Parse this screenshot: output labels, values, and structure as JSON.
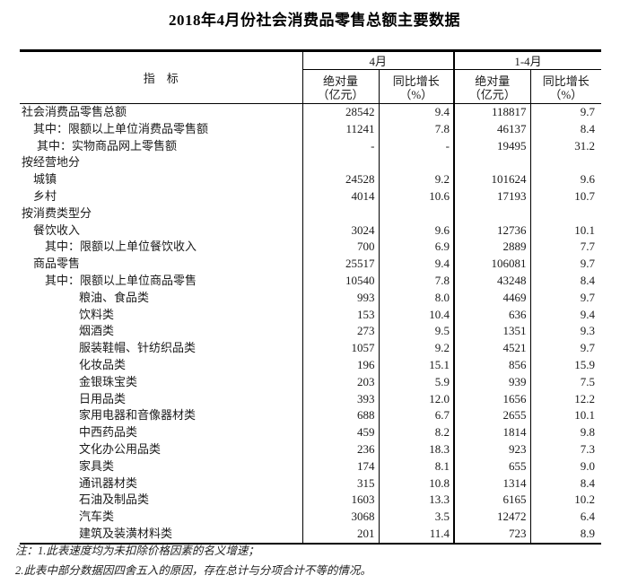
{
  "title": "2018年4月份社会消费品零售总额主要数据",
  "table": {
    "header": {
      "indicator": "指　标",
      "groups": [
        {
          "label": "4月"
        },
        {
          "label": "1-4月"
        }
      ],
      "cols": [
        {
          "line1": "绝对量",
          "line2": "（亿元）"
        },
        {
          "line1": "同比增长",
          "line2": "（%）"
        },
        {
          "line1": "绝对量",
          "line2": "（亿元）"
        },
        {
          "line1": "同比增长",
          "line2": "（%）"
        }
      ]
    },
    "rows": [
      {
        "label": "社会消费品零售总额",
        "level": 0,
        "values": [
          "28542",
          "9.4",
          "118817",
          "9.7"
        ]
      },
      {
        "label": "其中：限额以上单位消费品零售额",
        "level": 1,
        "values": [
          "11241",
          "7.8",
          "46137",
          "8.4"
        ]
      },
      {
        "label": "其中：实物商品网上零售额",
        "level": 1.2,
        "values": [
          "-",
          "-",
          "19495",
          "31.2"
        ]
      },
      {
        "label": "按经营地分",
        "level": 0,
        "values": [
          "",
          "",
          "",
          ""
        ]
      },
      {
        "label": "城镇",
        "level": 1,
        "values": [
          "24528",
          "9.2",
          "101624",
          "9.6"
        ]
      },
      {
        "label": "乡村",
        "level": 1,
        "values": [
          "4014",
          "10.6",
          "17193",
          "10.7"
        ]
      },
      {
        "label": "按消费类型分",
        "level": 0,
        "values": [
          "",
          "",
          "",
          ""
        ]
      },
      {
        "label": "餐饮收入",
        "level": 1,
        "values": [
          "3024",
          "9.6",
          "12736",
          "10.1"
        ]
      },
      {
        "label": "其中：限额以上单位餐饮收入",
        "level": 2,
        "values": [
          "700",
          "6.9",
          "2889",
          "7.7"
        ]
      },
      {
        "label": "商品零售",
        "level": 1,
        "values": [
          "25517",
          "9.4",
          "106081",
          "9.7"
        ]
      },
      {
        "label": "其中：限额以上单位商品零售",
        "level": 2,
        "values": [
          "10540",
          "7.8",
          "43248",
          "8.4"
        ]
      },
      {
        "label": "粮油、食品类",
        "level": 3,
        "values": [
          "993",
          "8.0",
          "4469",
          "9.7"
        ]
      },
      {
        "label": "饮料类",
        "level": 3,
        "values": [
          "153",
          "10.4",
          "636",
          "9.4"
        ]
      },
      {
        "label": "烟酒类",
        "level": 3,
        "values": [
          "273",
          "9.5",
          "1351",
          "9.3"
        ]
      },
      {
        "label": "服装鞋帽、针纺织品类",
        "level": 3,
        "values": [
          "1057",
          "9.2",
          "4521",
          "9.7"
        ]
      },
      {
        "label": "化妆品类",
        "level": 3,
        "values": [
          "196",
          "15.1",
          "856",
          "15.9"
        ]
      },
      {
        "label": "金银珠宝类",
        "level": 3,
        "values": [
          "203",
          "5.9",
          "939",
          "7.5"
        ]
      },
      {
        "label": "日用品类",
        "level": 3,
        "values": [
          "393",
          "12.0",
          "1656",
          "12.2"
        ]
      },
      {
        "label": "家用电器和音像器材类",
        "level": 3,
        "values": [
          "688",
          "6.7",
          "2655",
          "10.1"
        ]
      },
      {
        "label": "中西药品类",
        "level": 3,
        "values": [
          "459",
          "8.2",
          "1814",
          "9.8"
        ]
      },
      {
        "label": "文化办公用品类",
        "level": 3,
        "values": [
          "236",
          "18.3",
          "923",
          "7.3"
        ]
      },
      {
        "label": "家具类",
        "level": 3,
        "values": [
          "174",
          "8.1",
          "655",
          "9.0"
        ]
      },
      {
        "label": "通讯器材类",
        "level": 3,
        "values": [
          "315",
          "10.8",
          "1314",
          "8.4"
        ]
      },
      {
        "label": "石油及制品类",
        "level": 3,
        "values": [
          "1603",
          "13.3",
          "6165",
          "10.2"
        ]
      },
      {
        "label": "汽车类",
        "level": 3,
        "values": [
          "3068",
          "3.5",
          "12472",
          "6.4"
        ]
      },
      {
        "label": "建筑及装潢材料类",
        "level": 3,
        "values": [
          "201",
          "11.4",
          "723",
          "8.9"
        ]
      }
    ]
  },
  "notes": [
    "注：1.此表速度均为未扣除价格因素的名义增速；",
    "2.此表中部分数据因四舍五入的原因，存在总计与分项合计不等的情况。"
  ]
}
